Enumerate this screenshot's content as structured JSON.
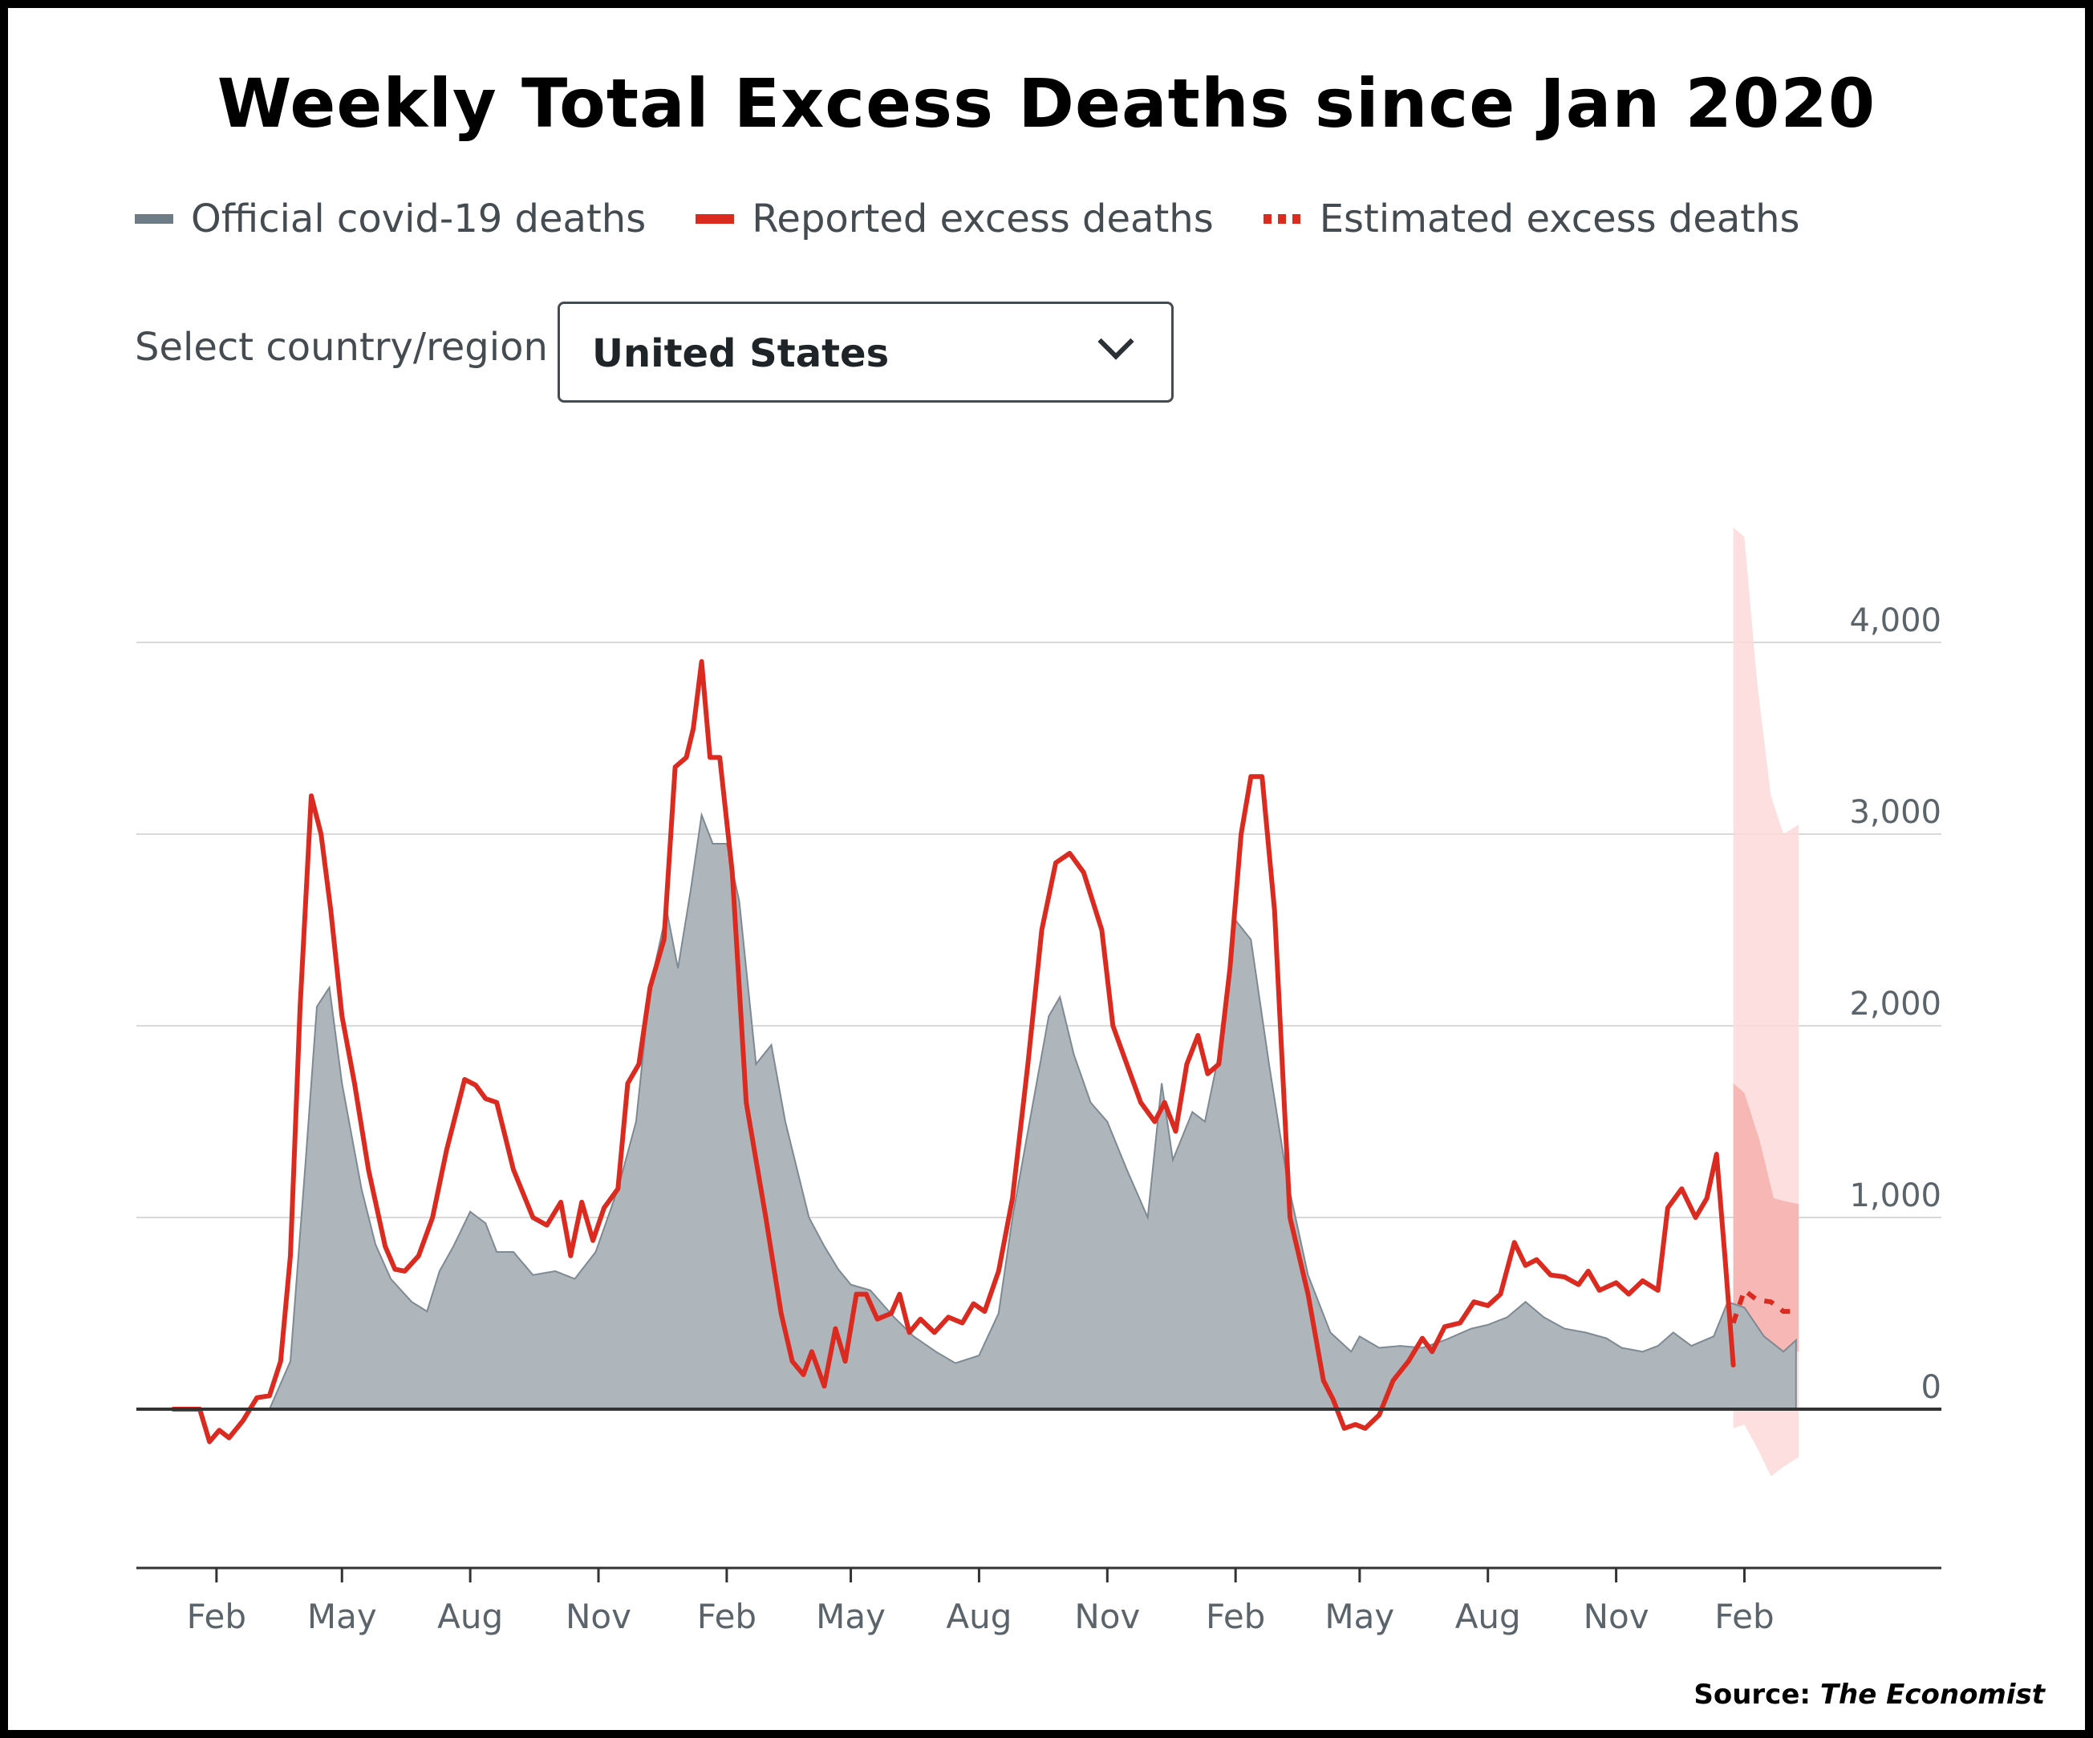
{
  "title": "Weekly Total Excess Deaths since Jan 2020",
  "legend": {
    "official": "Official covid-19 deaths",
    "reported": "Reported excess deaths",
    "estimated": "Estimated excess deaths"
  },
  "selector": {
    "label": "Select country/region",
    "value": "United States"
  },
  "source": {
    "prefix": "Source:",
    "name": "The Economist"
  },
  "colors": {
    "official": "#aeb6bc",
    "official_edge": "#7e8a93",
    "reported": "#db2a20",
    "band": "#fbd9d8",
    "band_inner": "#f5a9a6",
    "grid": "#d9d9d9",
    "axis": "#333333",
    "tick_text": "#5b646b"
  },
  "chart_data": {
    "type": "area",
    "title": "Weekly Total Excess Deaths since Jan 2020",
    "xlabel": "",
    "ylabel": "",
    "ylim": [
      -800,
      4600
    ],
    "grid": true,
    "y_ticks": [
      {
        "value": 0,
        "label": "0"
      },
      {
        "value": 1000,
        "label": "1,000"
      },
      {
        "value": 2000,
        "label": "2,000"
      },
      {
        "value": 3000,
        "label": "3,000"
      },
      {
        "value": 4000,
        "label": "4,000"
      }
    ],
    "x_ticks": [
      {
        "date": "2020-02-01",
        "label": "Feb"
      },
      {
        "date": "2020-05-01",
        "label": "May"
      },
      {
        "date": "2020-08-01",
        "label": "Aug"
      },
      {
        "date": "2020-11-01",
        "label": "Nov"
      },
      {
        "date": "2021-02-01",
        "label": "Feb"
      },
      {
        "date": "2021-05-01",
        "label": "May"
      },
      {
        "date": "2021-08-01",
        "label": "Aug"
      },
      {
        "date": "2021-11-01",
        "label": "Nov"
      },
      {
        "date": "2022-02-01",
        "label": "Feb"
      },
      {
        "date": "2022-05-01",
        "label": "May"
      },
      {
        "date": "2022-08-01",
        "label": "Aug"
      },
      {
        "date": "2022-11-01",
        "label": "Nov"
      },
      {
        "date": "2023-02-01",
        "label": "Feb"
      }
    ],
    "series": [
      {
        "name": "Official covid-19 deaths",
        "type": "area",
        "points": [
          [
            "2020-02-20",
            0
          ],
          [
            "2020-03-10",
            0
          ],
          [
            "2020-03-25",
            250
          ],
          [
            "2020-04-05",
            1300
          ],
          [
            "2020-04-13",
            2100
          ],
          [
            "2020-04-22",
            2200
          ],
          [
            "2020-05-01",
            1700
          ],
          [
            "2020-05-15",
            1150
          ],
          [
            "2020-05-25",
            860
          ],
          [
            "2020-06-05",
            680
          ],
          [
            "2020-06-20",
            560
          ],
          [
            "2020-07-01",
            510
          ],
          [
            "2020-07-10",
            720
          ],
          [
            "2020-07-20",
            850
          ],
          [
            "2020-08-01",
            1030
          ],
          [
            "2020-08-12",
            970
          ],
          [
            "2020-08-20",
            820
          ],
          [
            "2020-09-01",
            820
          ],
          [
            "2020-09-15",
            700
          ],
          [
            "2020-10-01",
            720
          ],
          [
            "2020-10-15",
            680
          ],
          [
            "2020-10-30",
            820
          ],
          [
            "2020-11-15",
            1150
          ],
          [
            "2020-11-28",
            1500
          ],
          [
            "2020-12-08",
            2200
          ],
          [
            "2020-12-20",
            2600
          ],
          [
            "2020-12-28",
            2300
          ],
          [
            "2021-01-06",
            2700
          ],
          [
            "2021-01-14",
            3100
          ],
          [
            "2021-01-22",
            2950
          ],
          [
            "2021-02-01",
            2950
          ],
          [
            "2021-02-10",
            2650
          ],
          [
            "2021-02-22",
            1800
          ],
          [
            "2021-03-05",
            1900
          ],
          [
            "2021-03-15",
            1500
          ],
          [
            "2021-04-01",
            1000
          ],
          [
            "2021-04-12",
            850
          ],
          [
            "2021-04-22",
            730
          ],
          [
            "2021-05-01",
            650
          ],
          [
            "2021-05-15",
            620
          ],
          [
            "2021-06-01",
            480
          ],
          [
            "2021-06-15",
            380
          ],
          [
            "2021-07-01",
            300
          ],
          [
            "2021-07-15",
            240
          ],
          [
            "2021-08-01",
            280
          ],
          [
            "2021-08-15",
            500
          ],
          [
            "2021-08-25",
            1000
          ],
          [
            "2021-09-05",
            1450
          ],
          [
            "2021-09-20",
            2050
          ],
          [
            "2021-09-28",
            2150
          ],
          [
            "2021-10-08",
            1850
          ],
          [
            "2021-10-20",
            1600
          ],
          [
            "2021-11-01",
            1500
          ],
          [
            "2021-11-15",
            1250
          ],
          [
            "2021-11-30",
            1000
          ],
          [
            "2021-12-10",
            1700
          ],
          [
            "2021-12-18",
            1300
          ],
          [
            "2022-01-01",
            1550
          ],
          [
            "2022-01-10",
            1500
          ],
          [
            "2022-01-20",
            1850
          ],
          [
            "2022-02-01",
            2550
          ],
          [
            "2022-02-12",
            2450
          ],
          [
            "2022-02-25",
            1800
          ],
          [
            "2022-03-10",
            1200
          ],
          [
            "2022-03-25",
            700
          ],
          [
            "2022-04-10",
            400
          ],
          [
            "2022-04-25",
            300
          ],
          [
            "2022-05-01",
            380
          ],
          [
            "2022-05-15",
            320
          ],
          [
            "2022-05-30",
            330
          ],
          [
            "2022-06-15",
            320
          ],
          [
            "2022-07-01",
            360
          ],
          [
            "2022-07-20",
            420
          ],
          [
            "2022-08-01",
            440
          ],
          [
            "2022-08-15",
            480
          ],
          [
            "2022-08-28",
            560
          ],
          [
            "2022-09-10",
            480
          ],
          [
            "2022-09-25",
            420
          ],
          [
            "2022-10-10",
            400
          ],
          [
            "2022-10-25",
            370
          ],
          [
            "2022-11-05",
            320
          ],
          [
            "2022-11-20",
            300
          ],
          [
            "2022-12-01",
            330
          ],
          [
            "2022-12-12",
            400
          ],
          [
            "2022-12-25",
            330
          ],
          [
            "2023-01-10",
            380
          ],
          [
            "2023-01-20",
            560
          ],
          [
            "2023-02-01",
            530
          ],
          [
            "2023-02-15",
            380
          ],
          [
            "2023-03-01",
            300
          ],
          [
            "2023-03-10",
            360
          ]
        ]
      },
      {
        "name": "Reported excess deaths",
        "type": "line",
        "points": [
          [
            "2020-01-01",
            0
          ],
          [
            "2020-01-20",
            0
          ],
          [
            "2020-01-27",
            -170
          ],
          [
            "2020-02-03",
            -110
          ],
          [
            "2020-02-10",
            -150
          ],
          [
            "2020-02-20",
            -60
          ],
          [
            "2020-03-01",
            60
          ],
          [
            "2020-03-10",
            70
          ],
          [
            "2020-03-18",
            250
          ],
          [
            "2020-03-25",
            800
          ],
          [
            "2020-04-01",
            2100
          ],
          [
            "2020-04-09",
            3200
          ],
          [
            "2020-04-16",
            3000
          ],
          [
            "2020-04-23",
            2600
          ],
          [
            "2020-05-01",
            2050
          ],
          [
            "2020-05-10",
            1700
          ],
          [
            "2020-05-20",
            1250
          ],
          [
            "2020-06-01",
            850
          ],
          [
            "2020-06-08",
            730
          ],
          [
            "2020-06-15",
            720
          ],
          [
            "2020-06-25",
            800
          ],
          [
            "2020-07-05",
            1000
          ],
          [
            "2020-07-15",
            1350
          ],
          [
            "2020-07-28",
            1720
          ],
          [
            "2020-08-05",
            1690
          ],
          [
            "2020-08-12",
            1620
          ],
          [
            "2020-08-20",
            1600
          ],
          [
            "2020-09-01",
            1250
          ],
          [
            "2020-09-15",
            1000
          ],
          [
            "2020-09-25",
            960
          ],
          [
            "2020-10-05",
            1080
          ],
          [
            "2020-10-12",
            800
          ],
          [
            "2020-10-20",
            1080
          ],
          [
            "2020-10-28",
            880
          ],
          [
            "2020-11-05",
            1050
          ],
          [
            "2020-11-15",
            1150
          ],
          [
            "2020-11-22",
            1700
          ],
          [
            "2020-11-30",
            1800
          ],
          [
            "2020-12-08",
            2200
          ],
          [
            "2020-12-18",
            2450
          ],
          [
            "2020-12-26",
            3350
          ],
          [
            "2021-01-03",
            3400
          ],
          [
            "2021-01-08",
            3550
          ],
          [
            "2021-01-14",
            3900
          ],
          [
            "2021-01-20",
            3400
          ],
          [
            "2021-01-27",
            3400
          ],
          [
            "2021-02-05",
            2800
          ],
          [
            "2021-02-15",
            1600
          ],
          [
            "2021-03-01",
            1000
          ],
          [
            "2021-03-12",
            500
          ],
          [
            "2021-03-20",
            250
          ],
          [
            "2021-03-28",
            180
          ],
          [
            "2021-04-03",
            300
          ],
          [
            "2021-04-12",
            120
          ],
          [
            "2021-04-20",
            420
          ],
          [
            "2021-04-27",
            250
          ],
          [
            "2021-05-05",
            600
          ],
          [
            "2021-05-12",
            600
          ],
          [
            "2021-05-20",
            470
          ],
          [
            "2021-05-30",
            500
          ],
          [
            "2021-06-05",
            600
          ],
          [
            "2021-06-12",
            400
          ],
          [
            "2021-06-20",
            470
          ],
          [
            "2021-06-30",
            400
          ],
          [
            "2021-07-10",
            480
          ],
          [
            "2021-07-20",
            450
          ],
          [
            "2021-07-28",
            550
          ],
          [
            "2021-08-05",
            510
          ],
          [
            "2021-08-15",
            720
          ],
          [
            "2021-08-25",
            1100
          ],
          [
            "2021-09-05",
            1800
          ],
          [
            "2021-09-15",
            2500
          ],
          [
            "2021-09-25",
            2850
          ],
          [
            "2021-10-05",
            2900
          ],
          [
            "2021-10-15",
            2800
          ],
          [
            "2021-10-28",
            2500
          ],
          [
            "2021-11-05",
            2000
          ],
          [
            "2021-11-15",
            1800
          ],
          [
            "2021-11-25",
            1600
          ],
          [
            "2021-12-05",
            1500
          ],
          [
            "2021-12-12",
            1600
          ],
          [
            "2021-12-20",
            1450
          ],
          [
            "2021-12-28",
            1800
          ],
          [
            "2022-01-05",
            1950
          ],
          [
            "2022-01-12",
            1750
          ],
          [
            "2022-01-20",
            1800
          ],
          [
            "2022-01-28",
            2300
          ],
          [
            "2022-02-05",
            3000
          ],
          [
            "2022-02-12",
            3300
          ],
          [
            "2022-02-20",
            3300
          ],
          [
            "2022-03-01",
            2600
          ],
          [
            "2022-03-12",
            1000
          ],
          [
            "2022-03-25",
            600
          ],
          [
            "2022-04-05",
            150
          ],
          [
            "2022-04-12",
            50
          ],
          [
            "2022-04-20",
            -100
          ],
          [
            "2022-04-28",
            -80
          ],
          [
            "2022-05-05",
            -100
          ],
          [
            "2022-05-15",
            -30
          ],
          [
            "2022-05-25",
            150
          ],
          [
            "2022-06-05",
            250
          ],
          [
            "2022-06-15",
            370
          ],
          [
            "2022-06-22",
            300
          ],
          [
            "2022-07-01",
            430
          ],
          [
            "2022-07-12",
            450
          ],
          [
            "2022-07-22",
            560
          ],
          [
            "2022-08-01",
            540
          ],
          [
            "2022-08-10",
            600
          ],
          [
            "2022-08-20",
            870
          ],
          [
            "2022-08-28",
            750
          ],
          [
            "2022-09-05",
            780
          ],
          [
            "2022-09-15",
            700
          ],
          [
            "2022-09-25",
            690
          ],
          [
            "2022-10-05",
            650
          ],
          [
            "2022-10-12",
            720
          ],
          [
            "2022-10-20",
            620
          ],
          [
            "2022-11-01",
            660
          ],
          [
            "2022-11-10",
            600
          ],
          [
            "2022-11-20",
            670
          ],
          [
            "2022-12-01",
            620
          ],
          [
            "2022-12-08",
            1050
          ],
          [
            "2022-12-18",
            1150
          ],
          [
            "2022-12-28",
            1000
          ],
          [
            "2023-01-05",
            1100
          ],
          [
            "2023-01-12",
            1330
          ],
          [
            "2023-01-18",
            800
          ],
          [
            "2023-01-24",
            230
          ]
        ]
      },
      {
        "name": "Estimated excess deaths",
        "type": "line",
        "style": "dotted",
        "points": [
          [
            "2023-01-24",
            450
          ],
          [
            "2023-02-01",
            620
          ],
          [
            "2023-02-10",
            570
          ],
          [
            "2023-02-20",
            560
          ],
          [
            "2023-03-01",
            510
          ],
          [
            "2023-03-12",
            510
          ]
        ]
      },
      {
        "name": "Estimated excess deaths (uncertainty)",
        "type": "band",
        "points": [
          [
            "2023-01-24",
            -100,
            4600
          ],
          [
            "2023-02-01",
            -80,
            4550
          ],
          [
            "2023-02-10",
            -200,
            3800
          ],
          [
            "2023-02-20",
            -350,
            3200
          ],
          [
            "2023-03-01",
            -300,
            3000
          ],
          [
            "2023-03-12",
            -250,
            3050
          ]
        ]
      },
      {
        "name": "Estimated excess deaths (inner range)",
        "type": "band",
        "points": [
          [
            "2023-01-24",
            100,
            1700
          ],
          [
            "2023-02-01",
            200,
            1650
          ],
          [
            "2023-02-12",
            250,
            1400
          ],
          [
            "2023-02-22",
            320,
            1100
          ],
          [
            "2023-03-05",
            300,
            1080
          ],
          [
            "2023-03-12",
            300,
            1070
          ]
        ]
      }
    ]
  }
}
